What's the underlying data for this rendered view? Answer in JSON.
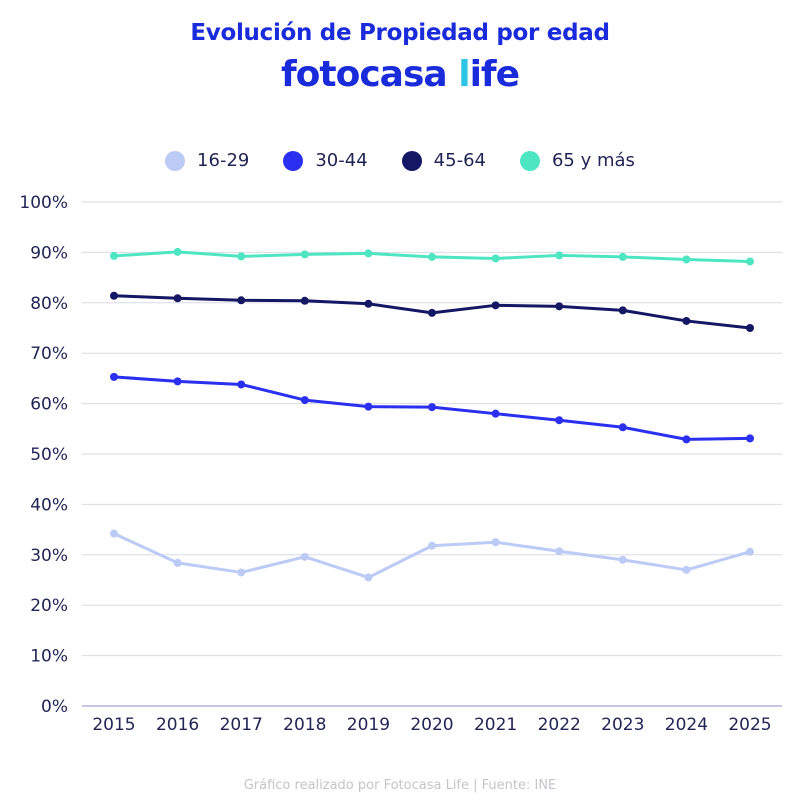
{
  "title": "Evolución de Propiedad por edad",
  "brand": {
    "main": "fotocasa ",
    "accent": "l",
    "rest": "ife"
  },
  "footer": "Gráfico realizado por Fotocasa Life | Fuente: INE",
  "chart_data": {
    "type": "line",
    "x": [
      "2015",
      "2016",
      "2017",
      "2018",
      "2019",
      "2020",
      "2021",
      "2022",
      "2023",
      "2024",
      "2025"
    ],
    "ylim": [
      0,
      100
    ],
    "yticks": [
      "0%",
      "10%",
      "20%",
      "30%",
      "40%",
      "50%",
      "60%",
      "70%",
      "80%",
      "90%",
      "100%"
    ],
    "grid": true,
    "legend_position": "top",
    "series": [
      {
        "name": "16-29",
        "color": "#bccaf6",
        "values": [
          34.2,
          28.4,
          26.5,
          29.6,
          25.5,
          31.8,
          32.5,
          30.7,
          29.0,
          27.0,
          30.6
        ]
      },
      {
        "name": "30-44",
        "color": "#2a2ff0",
        "values": [
          65.3,
          64.4,
          63.8,
          60.7,
          59.4,
          59.3,
          58.0,
          56.7,
          55.3,
          52.9,
          53.1
        ]
      },
      {
        "name": "45-64",
        "color": "#141864",
        "values": [
          81.4,
          80.9,
          80.5,
          80.4,
          79.8,
          78.0,
          79.5,
          79.3,
          78.5,
          76.4,
          75.0
        ]
      },
      {
        "name": "65 y más",
        "color": "#4ee6c2",
        "values": [
          89.3,
          90.1,
          89.2,
          89.6,
          89.8,
          89.1,
          88.8,
          89.4,
          89.1,
          88.6,
          88.2
        ]
      }
    ]
  }
}
